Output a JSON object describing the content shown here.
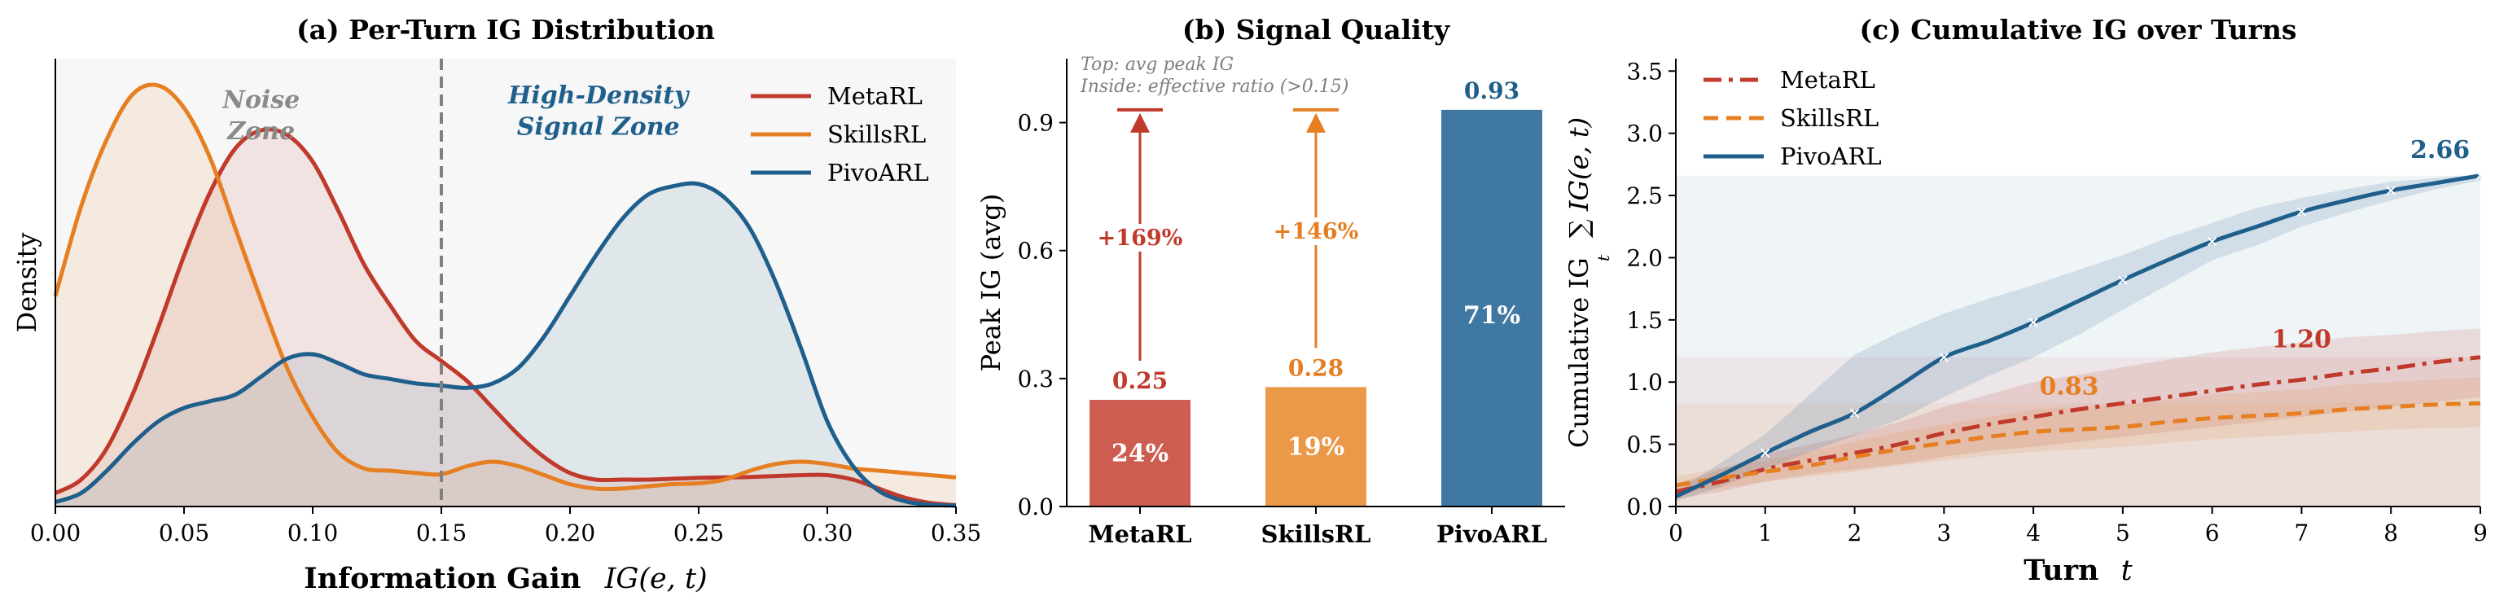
{
  "chart_data": [
    {
      "type": "area",
      "title": "(a) Per-Turn IG Distribution",
      "xlabel": "Information Gain",
      "xlabel_math": "IG(e, t)",
      "ylabel": "Density",
      "xlim": [
        0.0,
        0.35
      ],
      "ylim": [
        0.0,
        10.0
      ],
      "x_ticks": [
        0.0,
        0.05,
        0.1,
        0.15,
        0.2,
        0.25,
        0.3,
        0.35
      ],
      "x_tick_labels": [
        "0.00",
        "0.05",
        "0.10",
        "0.15",
        "0.20",
        "0.25",
        "0.30",
        "0.35"
      ],
      "threshold_x": 0.15,
      "background_color": "#f7f7f7",
      "annotations": [
        {
          "text": "Noise",
          "x": 0.08,
          "y": 8.9,
          "color": "#8a8a8a"
        },
        {
          "text": "Zone",
          "x": 0.08,
          "y": 8.2,
          "color": "#8a8a8a"
        },
        {
          "text": "High-Density",
          "x": 0.211,
          "y": 9.0,
          "color": "#1f5f8b"
        },
        {
          "text": "Signal Zone",
          "x": 0.211,
          "y": 8.3,
          "color": "#1f5f8b"
        }
      ],
      "legend_position": "top-right",
      "series": [
        {
          "name": "MetaRL",
          "color": "#c0392b",
          "x": [
            0.0,
            0.01,
            0.02,
            0.03,
            0.04,
            0.05,
            0.06,
            0.07,
            0.08,
            0.09,
            0.1,
            0.11,
            0.12,
            0.13,
            0.14,
            0.15,
            0.16,
            0.17,
            0.18,
            0.19,
            0.2,
            0.21,
            0.22,
            0.23,
            0.24,
            0.25,
            0.26,
            0.27,
            0.28,
            0.29,
            0.3,
            0.31,
            0.32,
            0.33,
            0.34,
            0.35
          ],
          "y": [
            0.3,
            0.6,
            1.3,
            2.5,
            4.0,
            5.6,
            7.0,
            8.0,
            8.4,
            8.3,
            7.7,
            6.6,
            5.4,
            4.5,
            3.7,
            3.25,
            2.8,
            2.2,
            1.6,
            1.1,
            0.75,
            0.6,
            0.6,
            0.6,
            0.62,
            0.64,
            0.65,
            0.66,
            0.68,
            0.7,
            0.7,
            0.6,
            0.4,
            0.2,
            0.08,
            0.03
          ]
        },
        {
          "name": "SkillsRL",
          "color": "#e67e22",
          "x": [
            0.0,
            0.01,
            0.02,
            0.03,
            0.04,
            0.05,
            0.06,
            0.07,
            0.08,
            0.09,
            0.1,
            0.11,
            0.12,
            0.13,
            0.14,
            0.15,
            0.16,
            0.17,
            0.18,
            0.19,
            0.2,
            0.21,
            0.22,
            0.23,
            0.24,
            0.25,
            0.26,
            0.27,
            0.28,
            0.29,
            0.3,
            0.31,
            0.32,
            0.33,
            0.34,
            0.35
          ],
          "y": [
            4.7,
            6.7,
            8.2,
            9.2,
            9.4,
            8.9,
            7.8,
            6.2,
            4.6,
            3.1,
            2.0,
            1.2,
            0.85,
            0.8,
            0.75,
            0.72,
            0.9,
            1.0,
            0.9,
            0.7,
            0.5,
            0.4,
            0.4,
            0.45,
            0.5,
            0.52,
            0.6,
            0.8,
            0.95,
            1.0,
            0.95,
            0.85,
            0.8,
            0.75,
            0.7,
            0.65
          ]
        },
        {
          "name": "PivoARL",
          "color": "#1f5f8b",
          "x": [
            0.0,
            0.01,
            0.02,
            0.03,
            0.04,
            0.05,
            0.06,
            0.07,
            0.08,
            0.09,
            0.1,
            0.11,
            0.12,
            0.13,
            0.14,
            0.15,
            0.16,
            0.17,
            0.18,
            0.19,
            0.2,
            0.21,
            0.22,
            0.23,
            0.24,
            0.25,
            0.26,
            0.27,
            0.28,
            0.29,
            0.3,
            0.31,
            0.32,
            0.33,
            0.34,
            0.35
          ],
          "y": [
            0.1,
            0.3,
            0.8,
            1.4,
            1.9,
            2.2,
            2.35,
            2.5,
            2.9,
            3.3,
            3.4,
            3.2,
            2.95,
            2.85,
            2.75,
            2.7,
            2.65,
            2.75,
            3.1,
            3.8,
            4.7,
            5.6,
            6.4,
            6.95,
            7.15,
            7.2,
            6.9,
            6.2,
            5.0,
            3.5,
            1.9,
            0.9,
            0.35,
            0.12,
            0.04,
            0.02
          ]
        }
      ]
    },
    {
      "type": "bar",
      "title": "(b) Signal Quality",
      "ylabel": "Peak IG (avg)",
      "ylim": [
        0.0,
        1.05
      ],
      "y_ticks": [
        0.0,
        0.3,
        0.6,
        0.9
      ],
      "y_tick_labels": [
        "0.0",
        "0.3",
        "0.6",
        "0.9"
      ],
      "categories": [
        "MetaRL",
        "SkillsRL",
        "PivoARL"
      ],
      "values": [
        0.25,
        0.28,
        0.93
      ],
      "value_labels": [
        "0.25",
        "0.28",
        "0.93"
      ],
      "inside_labels": [
        "24%",
        "19%",
        "71%"
      ],
      "colors": [
        "#cd5c51",
        "#eb9848",
        "#3f78a2"
      ],
      "label_colors": [
        "#c0392b",
        "#e67e22",
        "#1f5f8b"
      ],
      "improvements": [
        {
          "category": "MetaRL",
          "text": "+169%",
          "color": "#c0392b"
        },
        {
          "category": "SkillsRL",
          "text": "+146%",
          "color": "#e67e22"
        }
      ],
      "target_value": 0.93,
      "notes": [
        "Top: avg peak IG",
        "Inside: effective ratio (>0.15)"
      ]
    },
    {
      "type": "line",
      "title": "(c) Cumulative IG over Turns",
      "xlabel": "Turn",
      "xlabel_math": "t",
      "ylabel": "Cumulative IG",
      "ylabel_math": "∑ IG(e, t)",
      "ylabel_math_sub": "t",
      "xlim": [
        0,
        9
      ],
      "ylim": [
        0.0,
        3.6
      ],
      "x_ticks": [
        0,
        1,
        2,
        3,
        4,
        5,
        6,
        7,
        8,
        9
      ],
      "y_ticks": [
        0.0,
        0.5,
        1.0,
        1.5,
        2.0,
        2.5,
        3.0,
        3.5
      ],
      "y_tick_labels": [
        "0.0",
        "0.5",
        "1.0",
        "1.5",
        "2.0",
        "2.5",
        "3.0",
        "3.5"
      ],
      "legend_position": "top-left",
      "x": [
        0,
        0.5,
        1,
        1.5,
        2,
        2.5,
        3,
        3.5,
        4,
        4.5,
        5,
        5.5,
        6,
        6.5,
        7,
        7.5,
        8,
        8.5,
        9
      ],
      "series": [
        {
          "name": "MetaRL",
          "color": "#c0392b",
          "style": "dashdot",
          "final_label": "1.20",
          "values": [
            0.12,
            0.2,
            0.3,
            0.37,
            0.43,
            0.5,
            0.59,
            0.66,
            0.72,
            0.78,
            0.83,
            0.88,
            0.93,
            0.98,
            1.02,
            1.07,
            1.11,
            1.16,
            1.2
          ],
          "upper": [
            0.18,
            0.3,
            0.42,
            0.5,
            0.58,
            0.68,
            0.8,
            0.9,
            1.0,
            1.06,
            1.12,
            1.18,
            1.24,
            1.28,
            1.32,
            1.36,
            1.38,
            1.41,
            1.43
          ],
          "lower": [
            0.06,
            0.12,
            0.2,
            0.26,
            0.3,
            0.34,
            0.4,
            0.45,
            0.48,
            0.52,
            0.56,
            0.6,
            0.64,
            0.68,
            0.72,
            0.76,
            0.8,
            0.84,
            0.88
          ]
        },
        {
          "name": "SkillsRL",
          "color": "#e67e22",
          "style": "dashed",
          "final_label": "0.83",
          "values": [
            0.17,
            0.23,
            0.28,
            0.33,
            0.4,
            0.46,
            0.51,
            0.56,
            0.6,
            0.62,
            0.64,
            0.68,
            0.71,
            0.73,
            0.75,
            0.78,
            0.8,
            0.82,
            0.83
          ],
          "upper": [
            0.24,
            0.31,
            0.37,
            0.44,
            0.52,
            0.6,
            0.66,
            0.72,
            0.78,
            0.8,
            0.82,
            0.86,
            0.9,
            0.92,
            0.94,
            0.98,
            1.0,
            1.02,
            1.04
          ],
          "lower": [
            0.1,
            0.15,
            0.2,
            0.24,
            0.28,
            0.33,
            0.37,
            0.41,
            0.44,
            0.46,
            0.48,
            0.51,
            0.54,
            0.56,
            0.58,
            0.6,
            0.62,
            0.63,
            0.64
          ]
        },
        {
          "name": "PivoARL",
          "color": "#1f5f8b",
          "style": "solid",
          "marker": "x",
          "final_label": "2.66",
          "values": [
            0.08,
            0.25,
            0.43,
            0.6,
            0.75,
            0.97,
            1.2,
            1.33,
            1.48,
            1.65,
            1.82,
            1.98,
            2.13,
            2.25,
            2.37,
            2.46,
            2.54,
            2.6,
            2.66
          ],
          "upper": [
            0.12,
            0.35,
            0.58,
            0.9,
            1.22,
            1.4,
            1.55,
            1.67,
            1.78,
            1.9,
            2.02,
            2.16,
            2.28,
            2.4,
            2.48,
            2.55,
            2.61,
            2.64,
            2.67
          ],
          "lower": [
            0.04,
            0.16,
            0.3,
            0.44,
            0.57,
            0.7,
            0.88,
            1.05,
            1.2,
            1.38,
            1.58,
            1.78,
            1.98,
            2.1,
            2.25,
            2.36,
            2.46,
            2.55,
            2.62
          ]
        }
      ],
      "background_bands": [
        {
          "y_from": 0.0,
          "y_to": 2.66,
          "color": "#1f5f8b"
        },
        {
          "y_from": 0.0,
          "y_to": 1.2,
          "color": "#c0392b"
        },
        {
          "y_from": 0.0,
          "y_to": 0.83,
          "color": "#e67e22"
        }
      ]
    }
  ]
}
